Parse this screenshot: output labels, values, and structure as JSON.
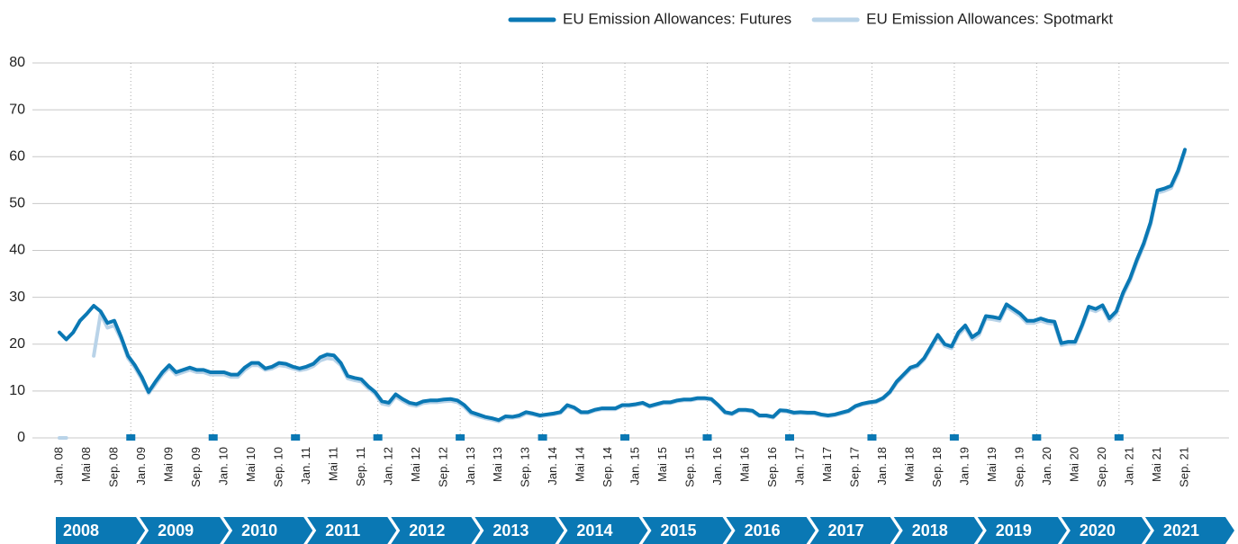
{
  "chart_data": {
    "type": "line",
    "categories": [
      "Jan. 08",
      null,
      null,
      null,
      "Mai 08",
      null,
      null,
      null,
      "Sep. 08",
      null,
      null,
      null,
      "Jan. 09",
      null,
      null,
      null,
      "Mai 09",
      null,
      null,
      null,
      "Sep. 09",
      null,
      null,
      null,
      "Jan. 10",
      null,
      null,
      null,
      "Mai 10",
      null,
      null,
      null,
      "Sep. 10",
      null,
      null,
      null,
      "Jan. 11",
      null,
      null,
      null,
      "Mai 11",
      null,
      null,
      null,
      "Sep. 11",
      null,
      null,
      null,
      "Jan. 12",
      null,
      null,
      null,
      "Mai 12",
      null,
      null,
      null,
      "Sep. 12",
      null,
      null,
      null,
      "Jan. 13",
      null,
      null,
      null,
      "Mai 13",
      null,
      null,
      null,
      "Sep. 13",
      null,
      null,
      null,
      "Jan. 14",
      null,
      null,
      null,
      "Mai 14",
      null,
      null,
      null,
      "Sep. 14",
      null,
      null,
      null,
      "Jan. 15",
      null,
      null,
      null,
      "Mai 15",
      null,
      null,
      null,
      "Sep. 15",
      null,
      null,
      null,
      "Jan. 16",
      null,
      null,
      null,
      "Mai 16",
      null,
      null,
      null,
      "Sep. 16",
      null,
      null,
      null,
      "Jan. 17",
      null,
      null,
      null,
      "Mai 17",
      null,
      null,
      null,
      "Sep. 17",
      null,
      null,
      null,
      "Jan. 18",
      null,
      null,
      null,
      "Mai 18",
      null,
      null,
      null,
      "Sep. 18",
      null,
      null,
      null,
      "Jan. 19",
      null,
      null,
      null,
      "Mai 19",
      null,
      null,
      null,
      "Sep. 19",
      null,
      null,
      null,
      "Jan. 20",
      null,
      null,
      null,
      "Mai 20",
      null,
      null,
      null,
      "Sep. 20",
      null,
      null,
      null,
      "Jan. 21",
      null,
      null,
      null,
      "Mai 21",
      null,
      null,
      null,
      "Sep. 21"
    ],
    "series": [
      {
        "name": "EU Emission Allowances: Spotmarkt",
        "color": "#b9d3e8",
        "values": [
          0,
          0,
          null,
          null,
          null,
          17.5,
          26.5,
          23.5,
          24,
          21,
          17,
          15,
          12.5,
          9.5,
          11.5,
          13.5,
          15,
          13.5,
          14,
          14.5,
          14,
          14,
          13.5,
          13.5,
          13.5,
          13,
          13,
          14.5,
          15.5,
          15.5,
          14.5,
          14.8,
          15.5,
          15.3,
          14.8,
          14.4,
          14.7,
          15.3,
          16.5,
          17,
          16.8,
          15.5,
          12.7,
          12.3,
          12,
          10.6,
          9.4,
          7.3,
          7,
          8.8,
          7.9,
          7.1,
          6.8,
          7.4,
          7.6,
          7.6,
          7.8,
          7.9,
          7.6,
          6.6,
          5.1,
          4.6,
          4.2,
          3.9,
          3.5,
          4.3,
          4.3,
          4.5,
          5.2,
          5,
          4.6,
          4.8,
          5,
          5.3,
          6.7,
          6.3,
          5.3,
          5.3,
          5.8,
          6.1,
          6.1,
          6.1,
          6.8,
          6.8,
          7,
          7.3,
          6.6,
          7,
          7.4,
          7.4,
          7.8,
          8,
          8,
          8.3,
          8.3,
          8.1,
          6.8,
          5.3,
          5,
          5.8,
          5.8,
          5.6,
          4.6,
          4.6,
          4.3,
          5.7,
          5.6,
          5.2,
          5.3,
          5.2,
          5.2,
          4.8,
          4.6,
          4.8,
          5.2,
          5.6,
          6.6,
          7.1,
          7.4,
          7.6,
          8.3,
          9.6,
          11.7,
          13.2,
          14.7,
          15.2,
          16.7,
          19.1,
          21.6,
          19.6,
          19.1,
          22,
          23.5,
          21,
          22,
          25.5,
          25.3,
          25,
          28,
          27,
          26,
          24.5,
          24.5,
          25,
          24.5,
          24.3,
          19.8,
          20.1,
          20.1,
          23.6,
          27.5,
          27,
          27.8,
          25,
          26.5,
          30.5,
          33.5,
          37.5,
          41,
          45.5,
          52.3,
          52.7,
          53.3,
          56.5,
          61
        ]
      },
      {
        "name": "EU Emission Allowances: Futures",
        "color": "#0a78b4",
        "values": [
          22.5,
          21,
          22.5,
          25,
          26.5,
          28.2,
          27,
          24.5,
          25,
          21.5,
          17.5,
          15.5,
          13,
          9.8,
          12,
          14,
          15.5,
          14,
          14.5,
          15,
          14.5,
          14.5,
          14,
          14,
          14,
          13.5,
          13.5,
          15,
          16,
          16,
          14.8,
          15.2,
          16,
          15.8,
          15.2,
          14.8,
          15.2,
          15.8,
          17.2,
          17.8,
          17.6,
          16,
          13.2,
          12.8,
          12.5,
          11,
          9.8,
          7.8,
          7.5,
          9.3,
          8.3,
          7.5,
          7.2,
          7.8,
          8,
          8,
          8.2,
          8.3,
          8,
          7,
          5.5,
          5,
          4.5,
          4.2,
          3.8,
          4.6,
          4.5,
          4.8,
          5.5,
          5.2,
          4.8,
          5,
          5.2,
          5.5,
          7,
          6.5,
          5.5,
          5.5,
          6,
          6.3,
          6.3,
          6.3,
          7,
          7,
          7.2,
          7.5,
          6.8,
          7.2,
          7.6,
          7.6,
          8,
          8.2,
          8.2,
          8.5,
          8.5,
          8.3,
          7,
          5.5,
          5.2,
          6,
          6,
          5.8,
          4.8,
          4.8,
          4.5,
          5.9,
          5.8,
          5.4,
          5.5,
          5.4,
          5.4,
          5,
          4.8,
          5,
          5.4,
          5.8,
          6.8,
          7.3,
          7.6,
          7.8,
          8.5,
          9.8,
          12,
          13.5,
          15,
          15.5,
          17,
          19.5,
          22,
          20,
          19.5,
          22.5,
          24,
          21.5,
          22.5,
          26,
          25.8,
          25.5,
          28.5,
          27.5,
          26.5,
          25,
          25,
          25.5,
          25,
          24.8,
          20.2,
          20.5,
          20.5,
          24,
          28,
          27.5,
          28.3,
          25.5,
          27,
          31,
          34,
          38,
          41.5,
          46,
          52.8,
          53.2,
          53.8,
          57,
          61.5
        ]
      }
    ],
    "legend_order": [
      1,
      0
    ],
    "ylim": [
      0,
      80
    ],
    "yticks": [
      0,
      10,
      20,
      30,
      40,
      50,
      60,
      70,
      80
    ],
    "grid": true,
    "years": [
      "2008",
      "2009",
      "2010",
      "2011",
      "2012",
      "2013",
      "2014",
      "2015",
      "2016",
      "2017",
      "2018",
      "2019",
      "2020",
      "2021"
    ],
    "year_band_color": "#0a78b4"
  }
}
